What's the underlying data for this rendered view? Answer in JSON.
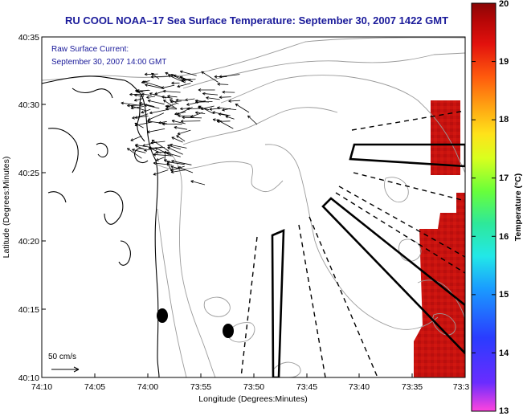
{
  "title": "RU COOL  NOAA–17  Sea Surface Temperature:  September 30, 2007 1422 GMT",
  "current_note": {
    "line1": "Raw Surface Current:",
    "line2": "September 30, 2007 14:00 GMT"
  },
  "scale_label": "50 cm/s",
  "axes": {
    "xlabel": "Longitude (Degrees:Minutes)",
    "ylabel": "Latitude (Degrees:Minutes)",
    "x_ticks": [
      "74:10",
      "74:05",
      "74:00",
      "73:55",
      "73:50",
      "73:45",
      "73:40",
      "73:35",
      "73:3"
    ],
    "y_ticks": [
      "40:35",
      "40:30",
      "40:25",
      "40:20",
      "40:15",
      "40:10"
    ]
  },
  "colorbar": {
    "label": "Temperature (°C)",
    "ticks": [
      "20",
      "19",
      "18",
      "17",
      "16",
      "15",
      "14",
      "13"
    ],
    "min": 13,
    "max": 20,
    "colors": [
      "#ff44dd",
      "#6a2cff",
      "#2a3cff",
      "#1a9bff",
      "#22e8e8",
      "#2ee89a",
      "#69ff3a",
      "#d9ff1e",
      "#ffe21a",
      "#ffa012",
      "#ff5a0d",
      "#e2110d",
      "#b40606",
      "#8a0606"
    ]
  },
  "colors": {
    "title": "#1a1a9a",
    "sst_warm": "#c71212",
    "coastline": "#000000",
    "bathymetry": "#9a9a9a"
  }
}
